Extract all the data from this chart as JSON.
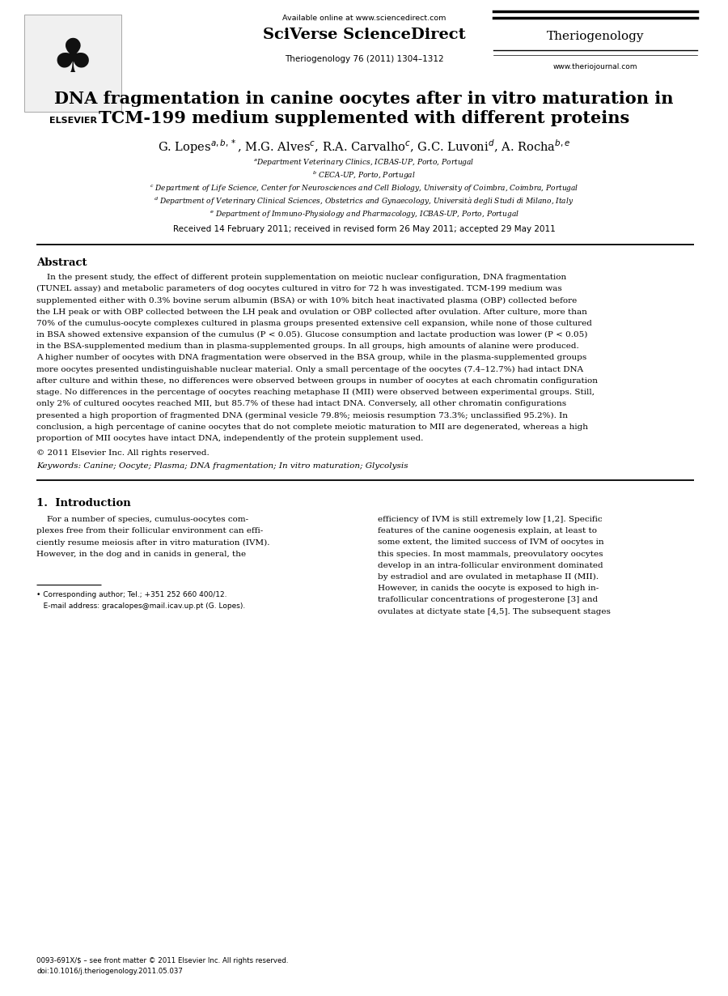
{
  "bg_color": "#ffffff",
  "page_width": 9.0,
  "page_height": 12.3,
  "available_online": "Available online at www.sciencedirect.com",
  "sciverse": "SciVerse ScienceDirect",
  "journal_name": "Theriogenology",
  "journal_info": "Theriogenology 76 (2011) 1304–1312",
  "website": "www.theriojournal.com",
  "title_line1": "DNA fragmentation in canine oocytes after in vitro maturation in",
  "title_line2": "TCM-199 medium supplemented with different proteins",
  "author_line": "G. Lopes$^{a,b,*}$, M.G. Alves$^{c}$, R.A. Carvalho$^{c}$, G.C. Luvoni$^{d}$, A. Rocha$^{b,e}$",
  "aff1": "$^{a}$Department Veterinary Clinics, ICBAS-UP, Porto, Portugal",
  "aff2": "$^{b}$ CECA-UP, Porto, Portugal",
  "aff3": "$^{c}$ Department of Life Science, Center for Neurosciences and Cell Biology, University of Coimbra, Coimbra, Portugal",
  "aff4": "$^{d}$ Department of Veterinary Clinical Sciences, Obstetrics and Gynaecology, Università degli Studi di Milano, Italy",
  "aff5": "$^{e}$ Department of Immuno-Physiology and Pharmacology, ICBAS-UP, Porto, Portugal",
  "received": "Received 14 February 2011; received in revised form 26 May 2011; accepted 29 May 2011",
  "abstract_title": "Abstract",
  "abstract_lines": [
    "    In the present study, the effect of different protein supplementation on meiotic nuclear configuration, DNA fragmentation",
    "(TUNEL assay) and metabolic parameters of dog oocytes cultured in vitro for 72 h was investigated. TCM-199 medium was",
    "supplemented either with 0.3% bovine serum albumin (BSA) or with 10% bitch heat inactivated plasma (OBP) collected before",
    "the LH peak or with OBP collected between the LH peak and ovulation or OBP collected after ovulation. After culture, more than",
    "70% of the cumulus-oocyte complexes cultured in plasma groups presented extensive cell expansion, while none of those cultured",
    "in BSA showed extensive expansion of the cumulus (P < 0.05). Glucose consumption and lactate production was lower (P < 0.05)",
    "in the BSA-supplemented medium than in plasma-supplemented groups. In all groups, high amounts of alanine were produced.",
    "A higher number of oocytes with DNA fragmentation were observed in the BSA group, while in the plasma-supplemented groups",
    "more oocytes presented undistinguishable nuclear material. Only a small percentage of the oocytes (7.4–12.7%) had intact DNA",
    "after culture and within these, no differences were observed between groups in number of oocytes at each chromatin configuration",
    "stage. No differences in the percentage of oocytes reaching metaphase II (MII) were observed between experimental groups. Still,",
    "only 2% of cultured oocytes reached MII, but 85.7% of these had intact DNA. Conversely, all other chromatin configurations",
    "presented a high proportion of fragmented DNA (germinal vesicle 79.8%; meiosis resumption 73.3%; unclassified 95.2%). In",
    "conclusion, a high percentage of canine oocytes that do not complete meiotic maturation to MII are degenerated, whereas a high",
    "proportion of MII oocytes have intact DNA, independently of the protein supplement used."
  ],
  "copyright": "© 2011 Elsevier Inc. All rights reserved.",
  "keywords": "Keywords: Canine; Oocyte; Plasma; DNA fragmentation; In vitro maturation; Glycolysis",
  "section1": "1.  Introduction",
  "intro_col1_lines": [
    "    For a number of species, cumulus-oocytes com-",
    "plexes free from their follicular environment can effi-",
    "ciently resume meiosis after in vitro maturation (IVM).",
    "However, in the dog and in canids in general, the"
  ],
  "intro_col2_lines": [
    "efficiency of IVM is still extremely low [1,2]. Specific",
    "features of the canine oogenesis explain, at least to",
    "some extent, the limited success of IVM of oocytes in",
    "this species. In most mammals, preovulatory oocytes",
    "develop in an intra-follicular environment dominated",
    "by estradiol and are ovulated in metaphase II (MII).",
    "However, in canids the oocyte is exposed to high in-",
    "trafollicular concentrations of progesterone [3] and",
    "ovulates at dictyate state [4,5]. The subsequent stages"
  ],
  "footnote1": "• Corresponding author; Tel.; +351 252 660 400/12.",
  "footnote2": "   E-mail address: gracalopes@mail.icav.up.pt (G. Lopes).",
  "footer": "0093-691X/$ – see front matter © 2011 Elsevier Inc. All rights reserved.",
  "footer2": "doi:10.1016/j.theriogenology.2011.05.037"
}
